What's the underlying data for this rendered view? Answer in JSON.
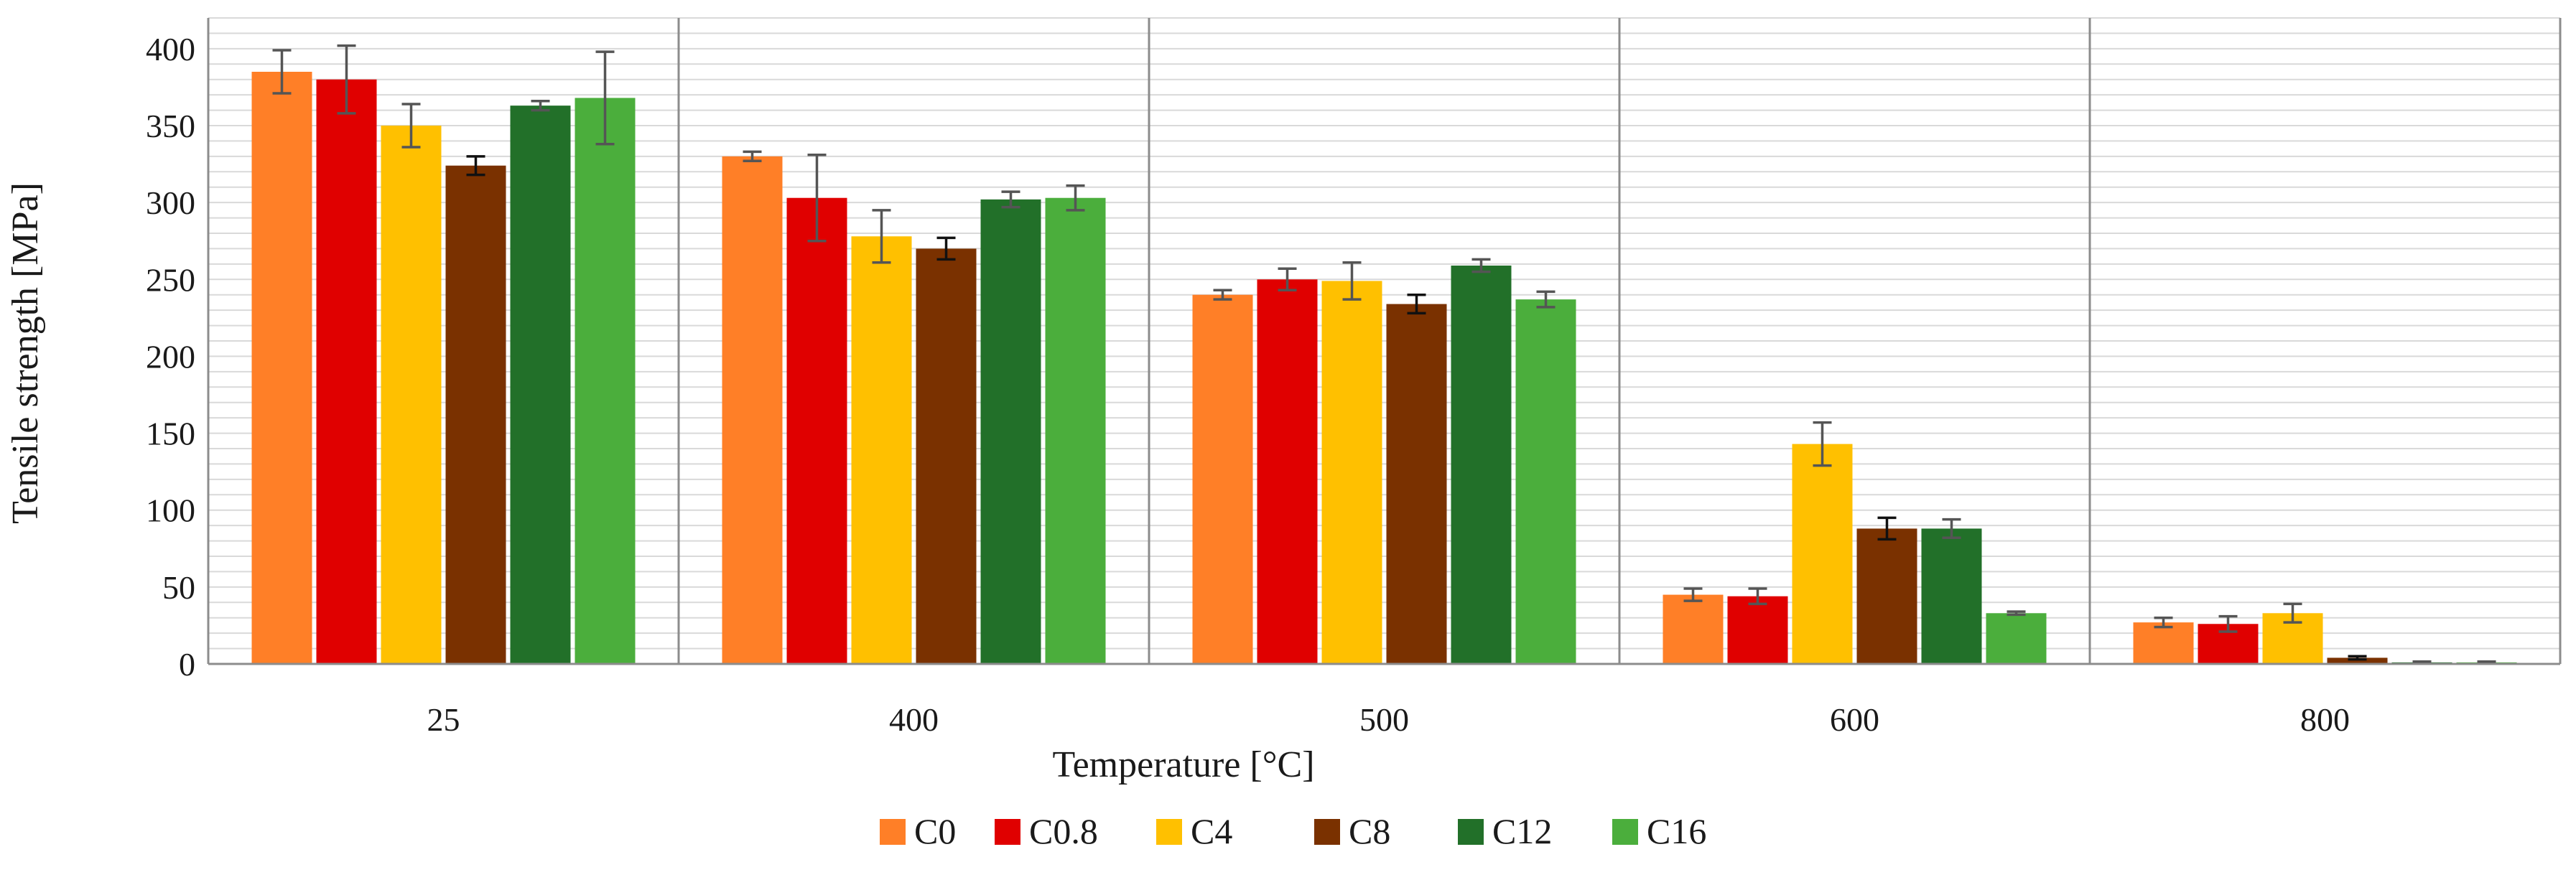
{
  "chart_data": {
    "type": "bar",
    "xlabel": "Temperature [°C]",
    "ylabel": "Tensile strength [MPa]",
    "ylim": [
      0,
      420
    ],
    "yticks": [
      0,
      50,
      100,
      150,
      200,
      250,
      300,
      350,
      400
    ],
    "minor_gridline_step": 10,
    "grid": true,
    "legend_position": "bottom",
    "categories": [
      "25",
      "400",
      "500",
      "600",
      "800"
    ],
    "series": [
      {
        "name": "C0",
        "color": "#ff7f27",
        "values": [
          385,
          330,
          240,
          45,
          27
        ],
        "errors": [
          14,
          3,
          3,
          4,
          3
        ]
      },
      {
        "name": "C0.8",
        "color": "#e00000",
        "values": [
          380,
          303,
          250,
          44,
          26
        ],
        "errors": [
          22,
          28,
          7,
          5,
          5
        ]
      },
      {
        "name": "C4",
        "color": "#ffc000",
        "values": [
          350,
          278,
          249,
          143,
          33
        ],
        "errors": [
          14,
          17,
          12,
          14,
          6
        ]
      },
      {
        "name": "C8",
        "color": "#7a3100",
        "values": [
          324,
          270,
          234,
          88,
          4
        ],
        "errors": [
          6,
          7,
          6,
          7,
          1
        ]
      },
      {
        "name": "C12",
        "color": "#227029",
        "values": [
          363,
          302,
          259,
          88,
          1
        ],
        "errors": [
          3,
          5,
          4,
          6,
          0.5
        ]
      },
      {
        "name": "C16",
        "color": "#4bae3c",
        "values": [
          368,
          303,
          237,
          33,
          1
        ],
        "errors": [
          30,
          8,
          5,
          1,
          0.5
        ]
      }
    ]
  }
}
